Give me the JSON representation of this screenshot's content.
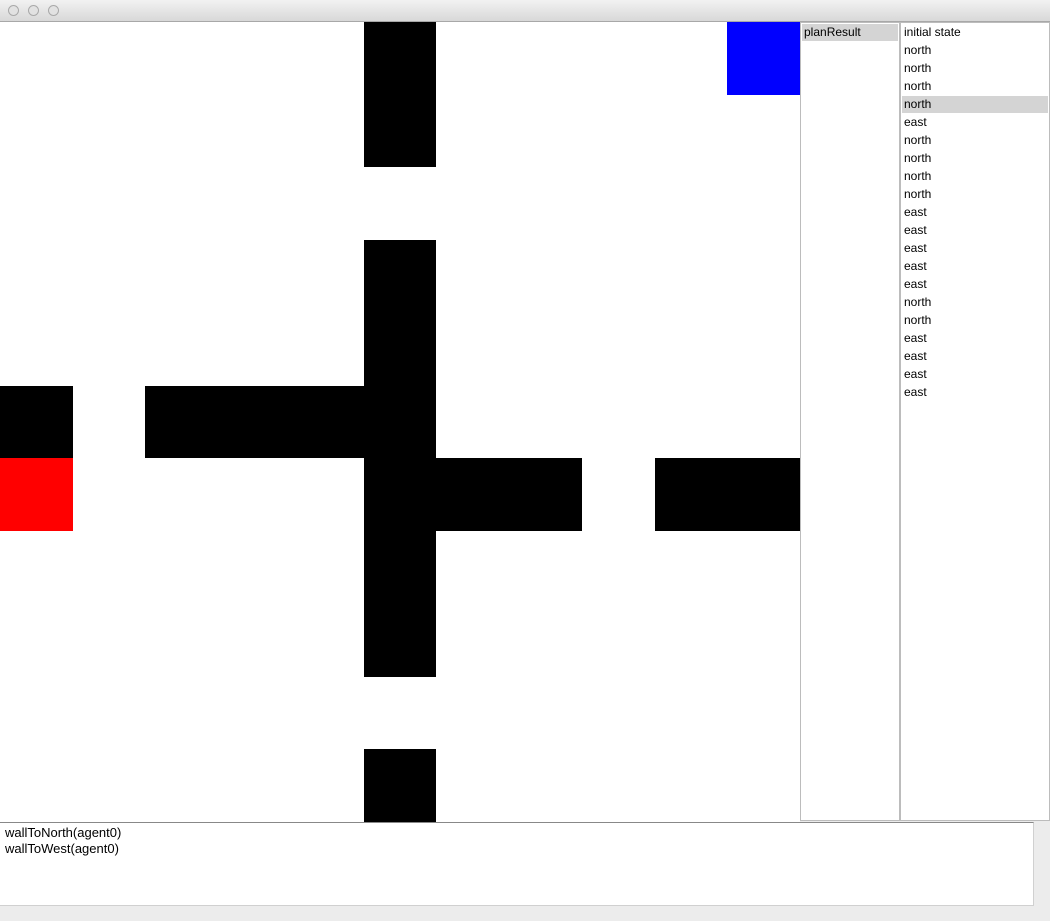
{
  "window": {
    "controls": [
      "close",
      "minimize",
      "zoom"
    ]
  },
  "grid": {
    "size": 11,
    "wall_color": "#000000",
    "walls": [
      [
        0,
        5
      ],
      [
        1,
        5
      ],
      [
        3,
        5
      ],
      [
        4,
        5
      ],
      [
        5,
        0
      ],
      [
        5,
        2
      ],
      [
        5,
        3
      ],
      [
        5,
        4
      ],
      [
        5,
        5
      ],
      [
        6,
        5
      ],
      [
        6,
        6
      ],
      [
        6,
        7
      ],
      [
        6,
        9
      ],
      [
        6,
        10
      ],
      [
        7,
        5
      ],
      [
        8,
        5
      ],
      [
        10,
        5
      ]
    ],
    "agent": {
      "row": 6,
      "col": 0,
      "color": "#ff0000"
    },
    "goal": {
      "row": 0,
      "col": 10,
      "color": "#0000ff"
    }
  },
  "plans": {
    "items": [
      "planResult"
    ],
    "selected": 0
  },
  "steps": {
    "items": [
      "initial state",
      "north",
      "north",
      "north",
      "north",
      "east",
      "north",
      "north",
      "north",
      "north",
      "east",
      "east",
      "east",
      "east",
      "east",
      "north",
      "north",
      "east",
      "east",
      "east",
      "east"
    ],
    "selected": 4
  },
  "console": {
    "lines": [
      "wallToNorth(agent0)",
      "wallToWest(agent0)"
    ]
  }
}
